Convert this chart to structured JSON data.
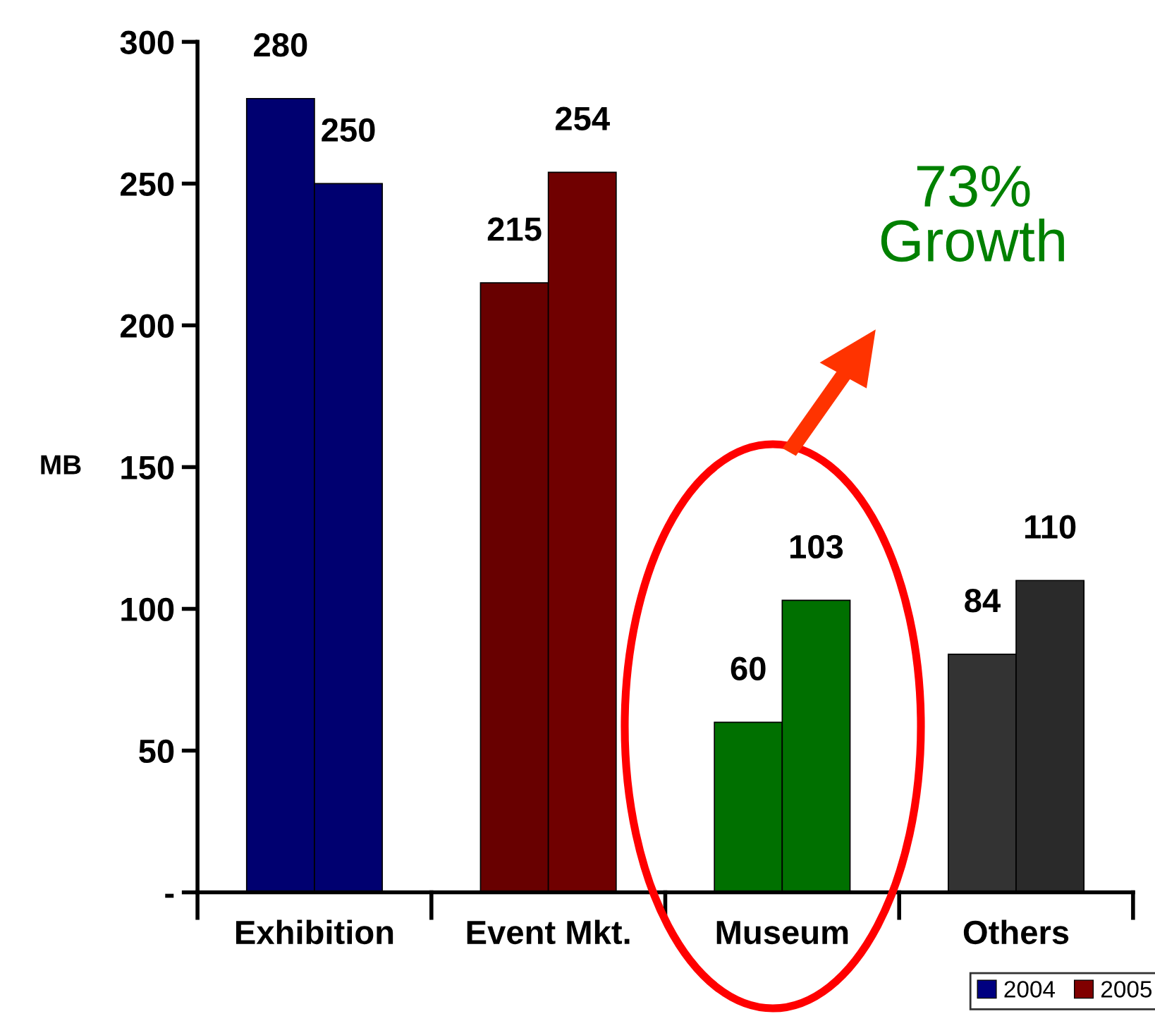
{
  "chart_data": {
    "type": "bar",
    "categories": [
      "Exhibition",
      "Event Mkt.",
      "Museum",
      "Others"
    ],
    "series": [
      {
        "name": "2004",
        "color": "#000080",
        "colors": [
          "#000070",
          "#680000",
          "#007000",
          "#333333"
        ],
        "values": [
          280,
          215,
          60,
          84
        ]
      },
      {
        "name": "2005",
        "color": "#800000",
        "colors": [
          "#000070",
          "#700000",
          "#007000",
          "#2a2a2a"
        ],
        "values": [
          250,
          254,
          103,
          110
        ]
      }
    ],
    "ylabel": "MB",
    "ylim": [
      0,
      300
    ],
    "yticks": [
      {
        "value": 0,
        "label": "-"
      },
      50,
      100,
      150,
      200,
      250,
      300
    ],
    "annotations": [
      "73%\nGrowth"
    ],
    "data_labels": true,
    "legend": "bottom right",
    "grid": false
  }
}
